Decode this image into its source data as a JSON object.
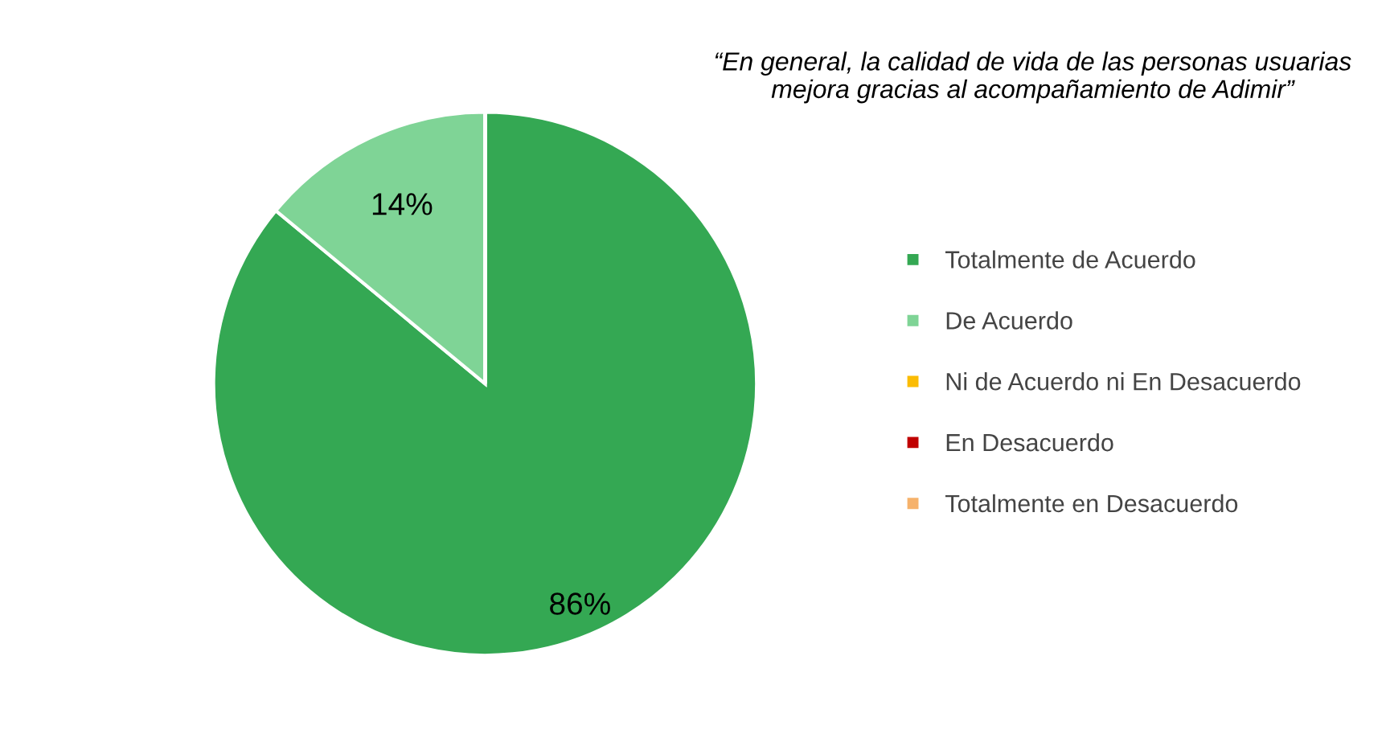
{
  "chart_data": {
    "type": "pie",
    "title": "“En general, la calidad de vida de las personas usuarias mejora gracias al acompañamiento de Adimir”",
    "categories": [
      "Totalmente de Acuerdo",
      "De Acuerdo",
      "Ni de Acuerdo ni En Desacuerdo",
      "En Desacuerdo",
      "Totalmente en Desacuerdo"
    ],
    "values": [
      86,
      14,
      0,
      0,
      0
    ],
    "colors": [
      "#34a853",
      "#7fd496",
      "#fbbc04",
      "#c00000",
      "#f6b26b"
    ],
    "value_labels": [
      "86%",
      "14%",
      null,
      null,
      null
    ],
    "legend": "right"
  }
}
